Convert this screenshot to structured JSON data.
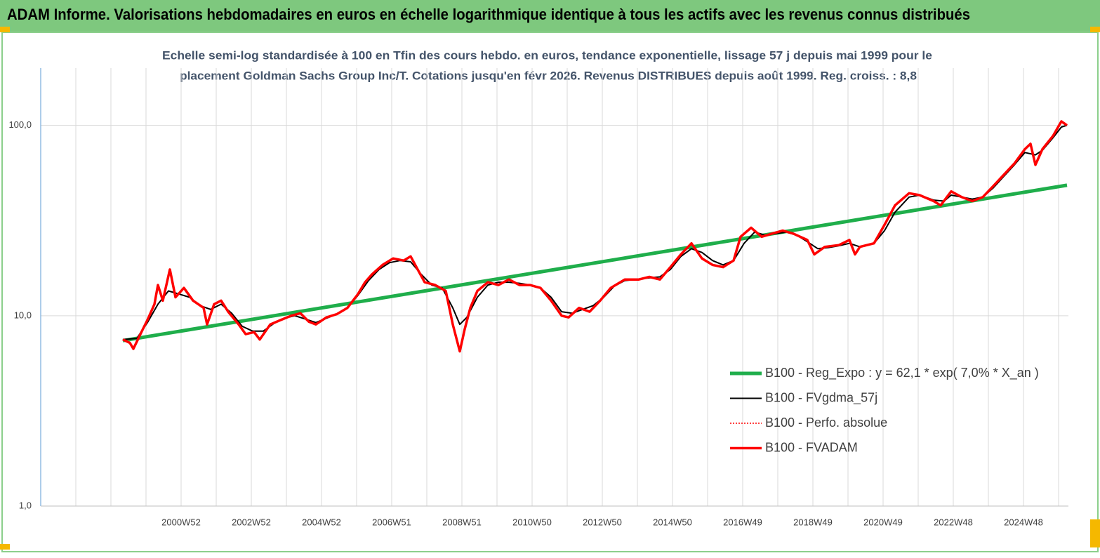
{
  "header": {
    "title": "ADAM Informe. Valorisations hebdomadaires en euros en échelle logarithmique identique à tous les actifs avec les revenus connus distribués"
  },
  "chart_data": {
    "type": "line",
    "subtitle": [
      "Echelle semi-log standardisée à 100 en Tfin des cours hebdo. en euros, tendance exponentielle, lissage 57 j depuis mai 1999 pour le",
      "placement Goldman Sachs  Group Inc/T. Cotations jusqu'en févr 2026. Revenus DISTRIBUES depuis août 1999. Reg. croiss. : 8,8"
    ],
    "log_y": true,
    "grid": true,
    "x_minor_grid": true,
    "legend": "right",
    "xlim": [
      1996.99,
      2026.27
    ],
    "ylim": [
      1,
      200
    ],
    "xticks": [
      {
        "value": 2000.99,
        "label": "2000W52"
      },
      {
        "value": 2002.99,
        "label": "2002W52"
      },
      {
        "value": 2004.99,
        "label": "2004W52"
      },
      {
        "value": 2006.99,
        "label": "2006W51"
      },
      {
        "value": 2008.99,
        "label": "2008W51"
      },
      {
        "value": 2010.99,
        "label": "2010W50"
      },
      {
        "value": 2012.99,
        "label": "2012W50"
      },
      {
        "value": 2014.99,
        "label": "2014W50"
      },
      {
        "value": 2016.99,
        "label": "2016W49"
      },
      {
        "value": 2018.99,
        "label": "2018W49"
      },
      {
        "value": 2020.99,
        "label": "2020W49"
      },
      {
        "value": 2022.99,
        "label": "2022W48"
      },
      {
        "value": 2024.99,
        "label": "2024W48"
      }
    ],
    "yticks": [
      {
        "value": 1,
        "label": "1,0"
      },
      {
        "value": 10,
        "label": "10,0"
      },
      {
        "value": 100,
        "label": "100,0"
      }
    ],
    "series": [
      {
        "name": "B100 - Reg_Expo : y = 62,1 *  exp( 7,0% *  X_an )",
        "color": "#1fae4b",
        "width": 5,
        "x": [
          1999.33,
          2026.23
        ],
        "values": [
          7.4,
          48.5
        ]
      },
      {
        "name": "B100 - FVgdma_57j",
        "color": "#000000",
        "width": 2,
        "x": [
          1999.33,
          1999.73,
          2000.03,
          2000.33,
          2000.63,
          2000.93,
          2001.23,
          2001.53,
          2001.83,
          2002.13,
          2002.43,
          2002.73,
          2003.03,
          2003.33,
          2003.63,
          2003.93,
          2004.23,
          2004.53,
          2004.83,
          2005.13,
          2005.43,
          2005.73,
          2006.03,
          2006.33,
          2006.63,
          2006.93,
          2007.23,
          2007.53,
          2007.83,
          2008.13,
          2008.43,
          2008.73,
          2008.93,
          2009.13,
          2009.43,
          2009.73,
          2010.03,
          2010.33,
          2010.63,
          2010.93,
          2011.23,
          2011.53,
          2011.83,
          2012.13,
          2012.43,
          2012.73,
          2013.03,
          2013.33,
          2013.63,
          2013.93,
          2014.33,
          2014.63,
          2014.93,
          2015.23,
          2015.53,
          2015.83,
          2016.13,
          2016.43,
          2016.73,
          2017.03,
          2017.33,
          2017.63,
          2017.93,
          2018.23,
          2018.53,
          2018.83,
          2019.13,
          2019.43,
          2019.73,
          2020.03,
          2020.33,
          2020.73,
          2021.03,
          2021.33,
          2021.73,
          2022.03,
          2022.43,
          2022.73,
          2022.93,
          2023.23,
          2023.53,
          2023.83,
          2024.13,
          2024.43,
          2024.73,
          2025.03,
          2025.33,
          2025.53,
          2025.83,
          2026.07,
          2026.23
        ],
        "values": [
          7.5,
          7.6,
          9.2,
          11.5,
          13.5,
          13.0,
          12.5,
          11.3,
          10.8,
          11.5,
          10.3,
          8.8,
          8.3,
          8.3,
          9.1,
          9.7,
          10.0,
          9.6,
          9.2,
          9.7,
          10.2,
          11.0,
          12.8,
          15.3,
          17.5,
          19.0,
          19.5,
          19.2,
          16.5,
          14.5,
          14.0,
          11.0,
          9.0,
          9.8,
          12.5,
          14.5,
          15.0,
          15.0,
          14.8,
          14.5,
          14.0,
          12.5,
          10.5,
          10.3,
          10.8,
          11.3,
          12.5,
          14.3,
          15.3,
          15.5,
          15.8,
          16.0,
          17.5,
          20.5,
          22.5,
          21.5,
          19.5,
          18.5,
          19.5,
          24.0,
          27.5,
          26.5,
          27.0,
          27.5,
          26.5,
          24.5,
          22.5,
          22.8,
          23.3,
          24.0,
          23.0,
          24.0,
          28.0,
          35.0,
          42.0,
          43.0,
          40.5,
          40.0,
          43.0,
          42.0,
          41.0,
          42.0,
          47.0,
          54.0,
          62.0,
          72.0,
          70.0,
          74.0,
          86.0,
          98.0,
          100.0
        ]
      },
      {
        "name": "B100 - Perfo. absolue",
        "color": "#ff0000",
        "width": 1.5,
        "dash": "2 2"
      },
      {
        "name": "B100 - FVADAM",
        "color": "#ff0000",
        "width": 3.5,
        "x": [
          1999.33,
          1999.53,
          1999.63,
          1999.83,
          2000.03,
          2000.23,
          2000.33,
          2000.47,
          2000.67,
          2000.83,
          2001.07,
          2001.33,
          2001.63,
          2001.73,
          2001.93,
          2002.13,
          2002.33,
          2002.63,
          2002.83,
          2003.07,
          2003.23,
          2003.53,
          2003.83,
          2004.13,
          2004.39,
          2004.63,
          2004.83,
          2005.13,
          2005.43,
          2005.73,
          2006.03,
          2006.23,
          2006.43,
          2006.73,
          2007.03,
          2007.33,
          2007.53,
          2007.73,
          2007.93,
          2008.23,
          2008.53,
          2008.73,
          2008.93,
          2009.07,
          2009.23,
          2009.43,
          2009.73,
          2010.03,
          2010.33,
          2010.63,
          2010.93,
          2011.23,
          2011.53,
          2011.83,
          2012.03,
          2012.33,
          2012.63,
          2012.93,
          2013.23,
          2013.63,
          2014.03,
          2014.33,
          2014.63,
          2014.93,
          2015.23,
          2015.53,
          2015.83,
          2016.13,
          2016.43,
          2016.73,
          2016.93,
          2017.23,
          2017.53,
          2017.83,
          2018.13,
          2018.43,
          2018.83,
          2019.03,
          2019.33,
          2019.73,
          2020.03,
          2020.19,
          2020.33,
          2020.73,
          2021.03,
          2021.33,
          2021.73,
          2022.03,
          2022.43,
          2022.63,
          2022.93,
          2023.23,
          2023.53,
          2023.83,
          2024.13,
          2024.43,
          2024.73,
          2025.03,
          2025.19,
          2025.33,
          2025.53,
          2025.83,
          2026.07,
          2026.23
        ],
        "values": [
          7.5,
          7.2,
          6.7,
          8.0,
          9.5,
          11.5,
          14.5,
          12.0,
          17.5,
          12.5,
          14.0,
          12.0,
          11.0,
          9.0,
          11.5,
          12.0,
          10.5,
          9.0,
          8.0,
          8.2,
          7.5,
          9.0,
          9.5,
          10.0,
          10.3,
          9.3,
          9.0,
          9.8,
          10.2,
          11.0,
          13.0,
          15.0,
          16.5,
          18.5,
          20.0,
          19.5,
          20.5,
          17.5,
          15.0,
          14.5,
          13.5,
          9.0,
          6.5,
          8.5,
          11.0,
          13.5,
          15.0,
          14.5,
          15.5,
          14.5,
          14.5,
          14.0,
          12.0,
          10.0,
          9.8,
          11.0,
          10.5,
          12.0,
          14.0,
          15.5,
          15.5,
          16.0,
          15.5,
          18.0,
          21.0,
          24.0,
          20.0,
          18.5,
          18.0,
          19.5,
          26.0,
          29.0,
          26.0,
          27.0,
          28.0,
          27.0,
          25.0,
          21.0,
          23.0,
          23.5,
          25.0,
          21.0,
          23.0,
          24.0,
          30.0,
          38.0,
          44.0,
          43.0,
          40.0,
          38.0,
          45.0,
          42.0,
          40.0,
          42.0,
          48.0,
          55.0,
          63.0,
          75.0,
          80.0,
          62.0,
          75.0,
          88.0,
          105.0,
          100.0
        ]
      }
    ]
  }
}
